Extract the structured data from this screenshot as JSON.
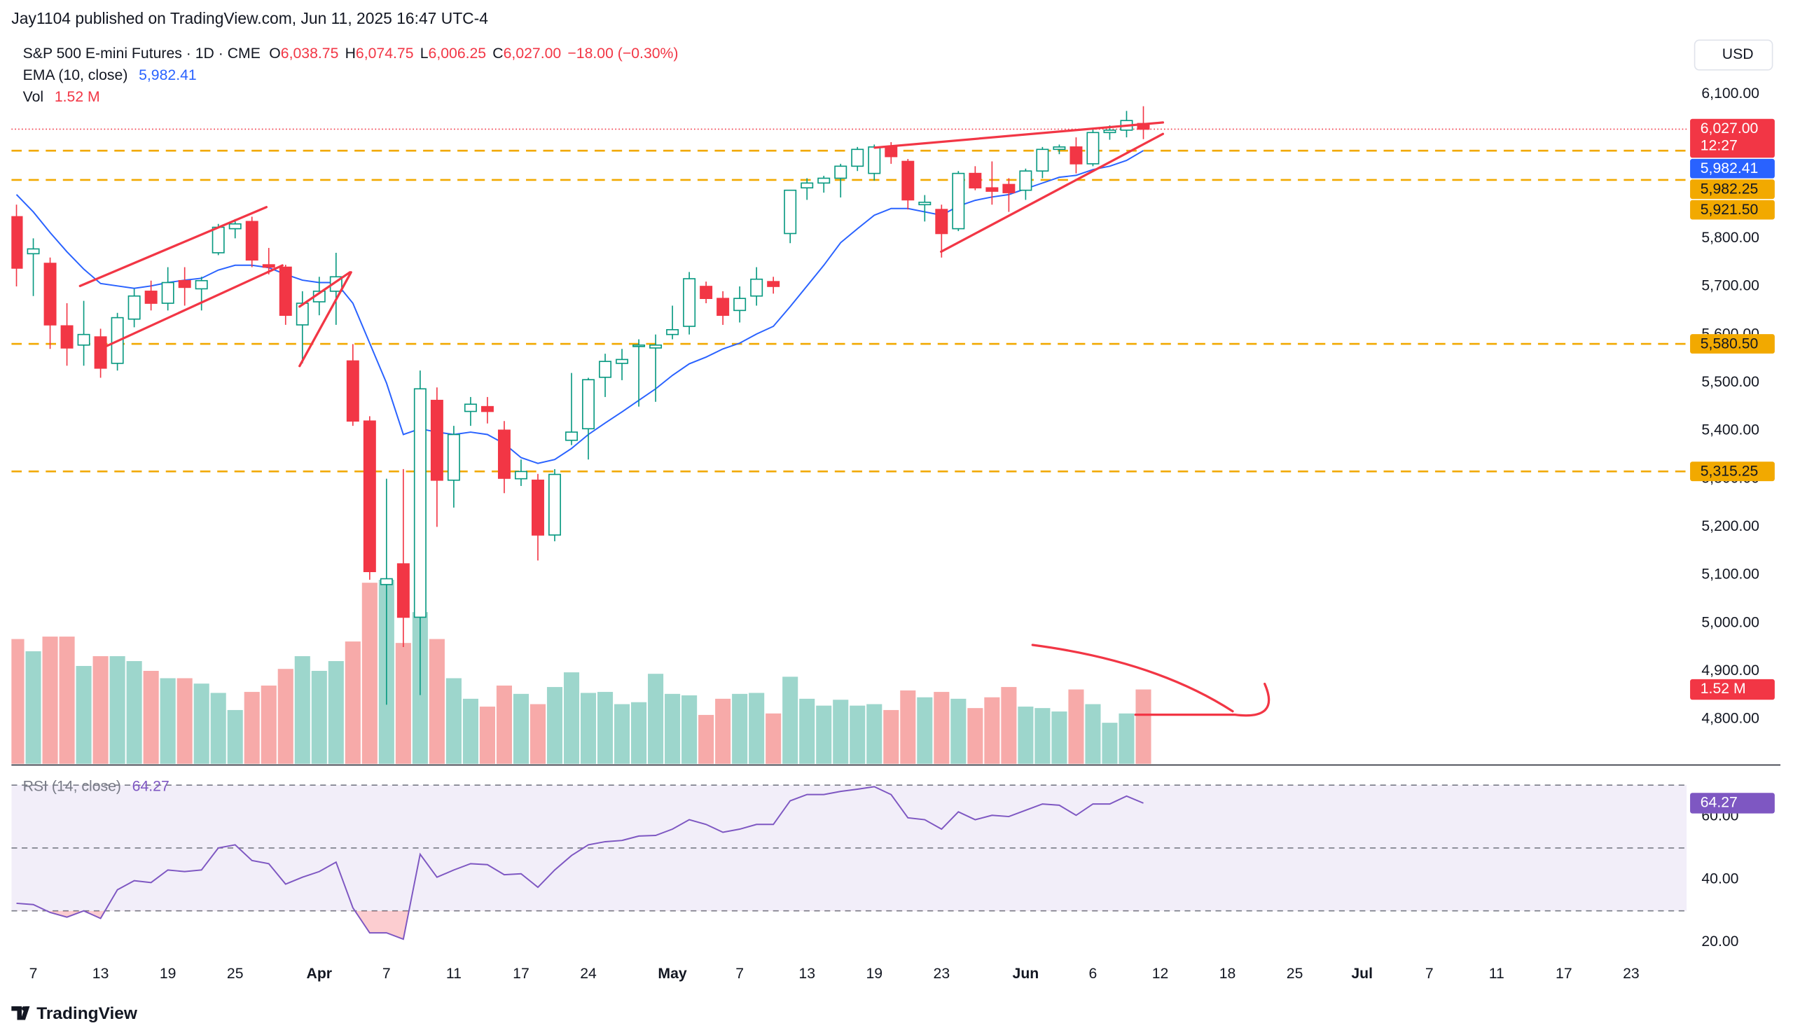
{
  "header": {
    "publisher": "Jay1104 published on TradingView.com, Jun 11, 2025 16:47 UTC-4"
  },
  "brand": "TradingView",
  "chart_data": {
    "type": "candlestick",
    "legend": {
      "title": "S&P 500 E-mini Futures · 1D · CME",
      "open_key": "O",
      "open": "6,038.75",
      "high_key": "H",
      "high": "6,074.75",
      "low_key": "L",
      "low": "6,006.25",
      "close_key": "C",
      "close": "6,027.00",
      "change": "−18.00 (−0.30%)",
      "ema_name": "EMA (10, close)",
      "ema_value": "5,982.41",
      "vol_name": "Vol",
      "vol_value": "1.52 M"
    },
    "currency": "USD",
    "xlim": [
      -0.3,
      99.3
    ],
    "xticks": [
      {
        "value": 1,
        "label": "7"
      },
      {
        "value": 5,
        "label": "13"
      },
      {
        "value": 9,
        "label": "19"
      },
      {
        "value": 13,
        "label": "25"
      },
      {
        "value": 18,
        "label": "Apr"
      },
      {
        "value": 22,
        "label": "7"
      },
      {
        "value": 26,
        "label": "11"
      },
      {
        "value": 30,
        "label": "17"
      },
      {
        "value": 34,
        "label": "24"
      },
      {
        "value": 39,
        "label": "May"
      },
      {
        "value": 43,
        "label": "7"
      },
      {
        "value": 47,
        "label": "13"
      },
      {
        "value": 51,
        "label": "19"
      },
      {
        "value": 55,
        "label": "23"
      },
      {
        "value": 60,
        "label": "Jun"
      },
      {
        "value": 64,
        "label": "6"
      },
      {
        "value": 68,
        "label": "12"
      },
      {
        "value": 72,
        "label": "18"
      },
      {
        "value": 76,
        "label": "25"
      },
      {
        "value": 80,
        "label": "Jul"
      },
      {
        "value": 84,
        "label": "7"
      },
      {
        "value": 88,
        "label": "11"
      },
      {
        "value": 92,
        "label": "17"
      },
      {
        "value": 96,
        "label": "23"
      }
    ],
    "ylim": [
      4707,
      6224
    ],
    "yticks": [
      {
        "value": 6100,
        "label": "6,100.00"
      },
      {
        "value": 6000,
        "label": "6,000.00"
      },
      {
        "value": 5900,
        "label": "5,900.00"
      },
      {
        "value": 5800,
        "label": "5,800.00"
      },
      {
        "value": 5700,
        "label": "5,700.00"
      },
      {
        "value": 5600,
        "label": "5,600.00"
      },
      {
        "value": 5500,
        "label": "5,500.00"
      },
      {
        "value": 5400,
        "label": "5,400.00"
      },
      {
        "value": 5300,
        "label": "5,300.00"
      },
      {
        "value": 5200,
        "label": "5,200.00"
      },
      {
        "value": 5100,
        "label": "5,100.00"
      },
      {
        "value": 5000,
        "label": "5,000.00"
      },
      {
        "value": 4900,
        "label": "4,900.00"
      },
      {
        "value": 4800,
        "label": "4,800.00"
      }
    ],
    "grid": false,
    "candles": {
      "up_color": "#089981",
      "down_color": "#f23645",
      "open": [
        5845,
        5768,
        5748,
        5618,
        5578,
        5595,
        5540,
        5632,
        5690,
        5665,
        5712,
        5695,
        5770,
        5820,
        5835,
        5745,
        5740,
        5620,
        5668,
        5690,
        5545,
        5420,
        5080,
        5123,
        5012,
        5463,
        5297,
        5440,
        5450,
        5401,
        5300,
        5297,
        5183,
        5380,
        5404,
        5511,
        5540,
        5575,
        5572,
        5600,
        5617,
        5700,
        5675,
        5650,
        5680,
        5710,
        5810,
        5905,
        5915,
        5925,
        5950,
        5935,
        5990,
        5960,
        5870,
        5860,
        5820,
        5935,
        5905,
        5912,
        5900,
        5940,
        5985,
        5990,
        5955,
        6020,
        6025,
        6038.75
      ],
      "high": [
        5870,
        5800,
        5760,
        5665,
        5670,
        5612,
        5645,
        5695,
        5712,
        5740,
        5740,
        5720,
        5830,
        5840,
        5845,
        5780,
        5745,
        5690,
        5720,
        5770,
        5580,
        5430,
        5300,
        5320,
        5525,
        5490,
        5410,
        5470,
        5470,
        5420,
        5340,
        5310,
        5320,
        5520,
        5510,
        5560,
        5570,
        5590,
        5600,
        5660,
        5730,
        5710,
        5690,
        5700,
        5740,
        5720,
        5900,
        5925,
        5930,
        5955,
        5990,
        5995,
        6000,
        5965,
        5890,
        5870,
        5940,
        5950,
        5960,
        5925,
        5945,
        5990,
        5995,
        6010,
        6030,
        6035,
        6065,
        6074.75
      ],
      "low": [
        5700,
        5680,
        5570,
        5535,
        5535,
        5510,
        5525,
        5615,
        5650,
        5650,
        5660,
        5650,
        5765,
        5800,
        5740,
        5725,
        5620,
        5540,
        5640,
        5620,
        5410,
        5090,
        4830,
        4950,
        4850,
        5200,
        5240,
        5410,
        5415,
        5270,
        5285,
        5130,
        5170,
        5370,
        5340,
        5470,
        5505,
        5450,
        5460,
        5590,
        5600,
        5665,
        5620,
        5625,
        5660,
        5685,
        5790,
        5880,
        5895,
        5885,
        5940,
        5920,
        5955,
        5860,
        5835,
        5760,
        5815,
        5900,
        5870,
        5855,
        5880,
        5925,
        5975,
        5935,
        5950,
        6005,
        6010,
        6006.25
      ],
      "close": [
        5738,
        5778,
        5620,
        5572,
        5600,
        5530,
        5635,
        5680,
        5665,
        5708,
        5698,
        5712,
        5823,
        5830,
        5755,
        5740,
        5640,
        5665,
        5690,
        5720,
        5420,
        5107,
        5092,
        5012,
        5487,
        5297,
        5392,
        5455,
        5440,
        5301,
        5315,
        5183,
        5309,
        5397,
        5506,
        5544,
        5548,
        5578,
        5578,
        5610,
        5716,
        5675,
        5640,
        5675,
        5715,
        5700,
        5900,
        5915,
        5925,
        5950,
        5985,
        5990,
        5970,
        5880,
        5875,
        5810,
        5935,
        5905,
        5898,
        5895,
        5940,
        5985,
        5990,
        5955,
        6020,
        6025,
        6045,
        6027
      ]
    },
    "ema": {
      "color": "#2962ff",
      "values": [
        5891,
        5855,
        5812,
        5772,
        5736,
        5706,
        5701,
        5696,
        5701,
        5708,
        5713,
        5717,
        5734,
        5744,
        5744,
        5739,
        5725,
        5713,
        5708,
        5708,
        5665,
        5582,
        5499,
        5392,
        5404,
        5397,
        5392,
        5397,
        5392,
        5373,
        5344,
        5332,
        5340,
        5363,
        5392,
        5416,
        5439,
        5463,
        5487,
        5515,
        5539,
        5553,
        5570,
        5582,
        5601,
        5617,
        5658,
        5701,
        5744,
        5791,
        5820,
        5848,
        5862,
        5862,
        5855,
        5848,
        5867,
        5879,
        5886,
        5891,
        5903,
        5915,
        5927,
        5931,
        5943,
        5950,
        5962,
        5982.41
      ]
    },
    "volume": {
      "up_color": "#9dd6cc",
      "down_color": "#f7aaa9",
      "label_color": "#f23645",
      "values": [
        2550000,
        2300000,
        2600000,
        2600000,
        2000000,
        2200000,
        2200000,
        2100000,
        1900000,
        1750000,
        1750000,
        1640000,
        1450000,
        1100000,
        1470000,
        1600000,
        1940000,
        2200000,
        1900000,
        2100000,
        2500000,
        3700000,
        3760000,
        2470000,
        3100000,
        2550000,
        1750000,
        1330000,
        1170000,
        1600000,
        1430000,
        1220000,
        1570000,
        1870000,
        1450000,
        1470000,
        1220000,
        1260000,
        1840000,
        1430000,
        1400000,
        1000000,
        1330000,
        1430000,
        1450000,
        1030000,
        1780000,
        1330000,
        1190000,
        1310000,
        1190000,
        1220000,
        1100000,
        1500000,
        1360000,
        1470000,
        1330000,
        1140000,
        1360000,
        1570000,
        1170000,
        1140000,
        1070000,
        1520000,
        1220000,
        840000,
        1030000,
        1520000
      ]
    },
    "last_price": {
      "value": 6027,
      "label": "6,027.00",
      "countdown": "12:27",
      "color": "#f23645"
    },
    "levels": {
      "color": "#f2a900",
      "items": [
        {
          "value": 5982.25,
          "label": "5,982.25"
        },
        {
          "value": 5921.5,
          "label": "5,921.50"
        },
        {
          "value": 5580.5,
          "label": "5,580.50"
        },
        {
          "value": 5315.25,
          "label": "5,315.25"
        }
      ]
    },
    "rsi": {
      "title": "RSI (14, close)",
      "value_label": "64.27",
      "color": "#7e57c2",
      "ylim": [
        14.2,
        75.3
      ],
      "yticks": [
        {
          "value": 60,
          "label": "60.00"
        },
        {
          "value": 40,
          "label": "40.00"
        },
        {
          "value": 20,
          "label": "20.00"
        }
      ],
      "bands": [
        70,
        50,
        30
      ],
      "values": [
        32.4,
        32,
        29.5,
        28,
        30,
        27.6,
        36.7,
        39.6,
        39,
        43,
        42.5,
        43,
        50,
        51,
        46,
        45,
        38.5,
        40.7,
        42.5,
        45.5,
        31,
        23,
        23,
        21,
        48,
        40.7,
        43,
        45,
        44.7,
        41.5,
        41.8,
        37.5,
        43,
        47.6,
        51,
        52,
        52.4,
        53.8,
        54,
        56,
        59,
        57.5,
        55,
        56,
        57.5,
        57.5,
        65,
        67,
        67,
        68,
        68.7,
        69.5,
        67,
        59.6,
        59,
        56,
        61.5,
        59,
        60.4,
        60,
        62,
        64,
        63.6,
        60.4,
        64,
        64,
        66.5,
        64.27
      ]
    }
  }
}
